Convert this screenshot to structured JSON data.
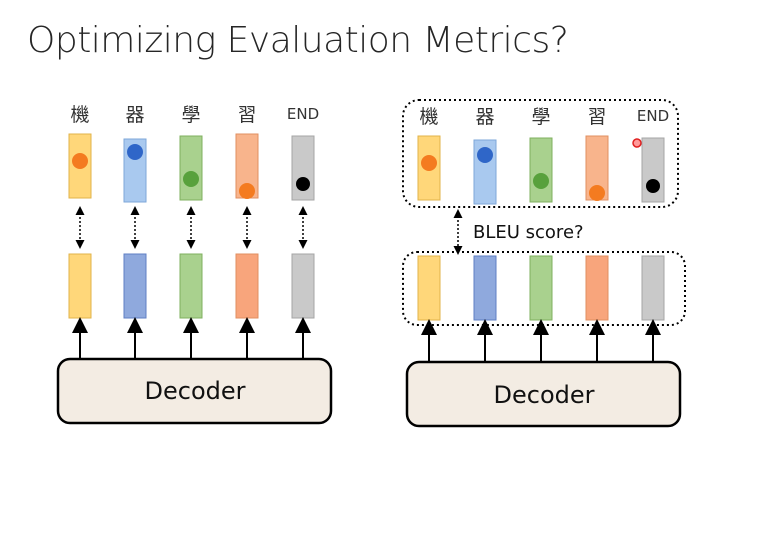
{
  "title": "Optimizing Evaluation Metrics?",
  "tokens": [
    "機",
    "器",
    "學",
    "習",
    "END"
  ],
  "decoder_label": "Decoder",
  "bleu_label": "BLEU score?",
  "colors": {
    "yellow": "#ffd77a",
    "blue": "#a9c9ef",
    "green": "#a9d18e",
    "orange": "#f8b48c",
    "gray": "#c9c9c9",
    "dot_orange": "#f47b20",
    "dot_blue": "#2f66c8",
    "dot_green": "#58a13c",
    "dot_black": "#000000",
    "decoder_fill": "#f3ece3"
  }
}
